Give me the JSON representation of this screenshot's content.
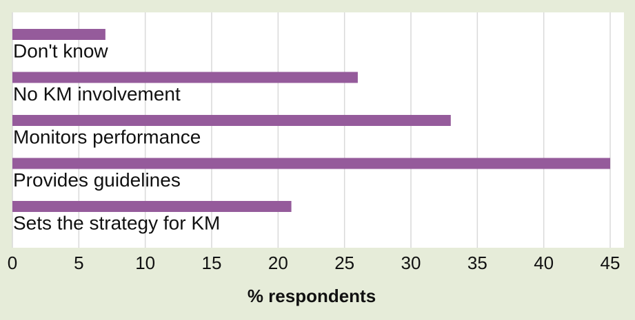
{
  "chart_data": {
    "type": "bar",
    "orientation": "horizontal",
    "categories": [
      "Don't know",
      "No KM involvement",
      "Monitors performance",
      "Provides guidelines",
      "Sets the strategy for KM"
    ],
    "values": [
      7,
      26,
      33,
      45,
      21
    ],
    "color": "#955b9b",
    "xlim": [
      0,
      45
    ],
    "xticks": [
      0,
      5,
      10,
      15,
      20,
      25,
      30,
      35,
      40,
      45
    ],
    "grid": true,
    "x_label": "% respondents"
  }
}
